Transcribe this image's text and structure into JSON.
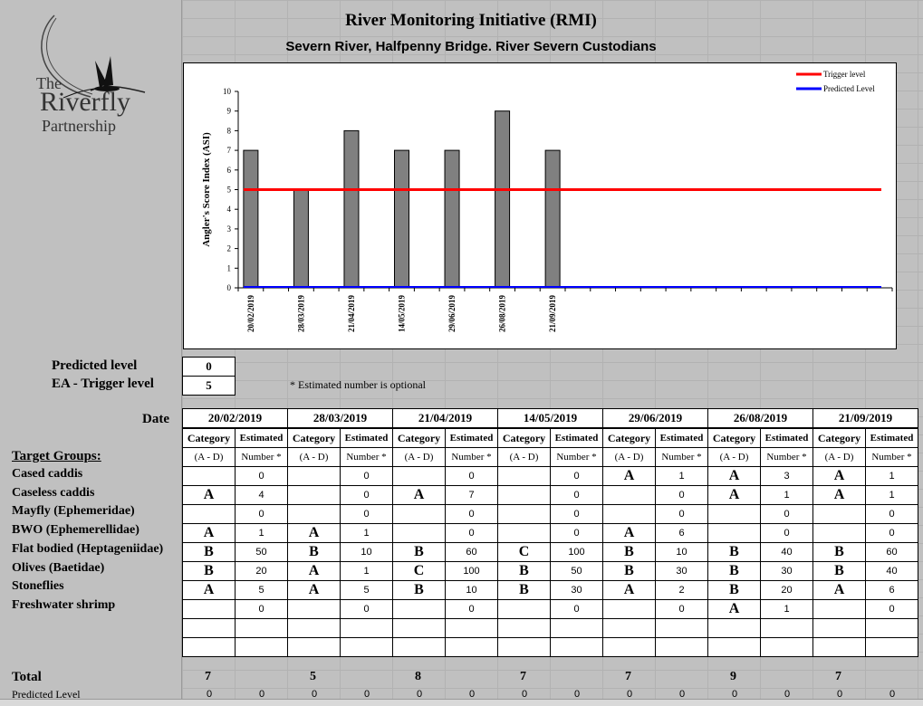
{
  "header": {
    "title": "River Monitoring Initiative (RMI)",
    "subtitle": "Severn River, Halfpenny Bridge.  River Severn Custodians"
  },
  "logo": {
    "line1": "The",
    "line2": "Riverfly",
    "line3": "Partnership"
  },
  "chart_data": {
    "type": "bar",
    "categories": [
      "20/02/2019",
      "28/03/2019",
      "21/04/2019",
      "14/05/2019",
      "29/06/2019",
      "26/08/2019",
      "21/09/2019"
    ],
    "values": [
      7,
      5,
      8,
      7,
      7,
      9,
      7
    ],
    "series": [
      {
        "name": "Trigger level",
        "values": [
          5,
          5,
          5,
          5,
          5,
          5,
          5
        ]
      },
      {
        "name": "Predicted Level",
        "values": [
          0,
          0,
          0,
          0,
          0,
          0,
          0
        ]
      }
    ],
    "ylabel": "Angler's Score Index (ASI)",
    "xlabel": "",
    "ylim": [
      0,
      10
    ],
    "yticks": [
      "0",
      "1",
      "2",
      "3",
      "4",
      "5",
      "6",
      "7",
      "8",
      "9",
      "10"
    ],
    "legend": "top-right",
    "colors": {
      "bars": "#808080",
      "trigger": "#ff0000",
      "predicted": "#0000ff"
    }
  },
  "levels": {
    "predicted_label": "Predicted level",
    "predicted_value": "0",
    "trigger_label": "EA - Trigger level",
    "trigger_value": "5",
    "note": "* Estimated number is optional"
  },
  "table": {
    "date_label": "Date",
    "target_label": "Target Groups:",
    "dates": [
      "20/02/2019",
      "28/03/2019",
      "21/04/2019",
      "14/05/2019",
      "29/06/2019",
      "26/08/2019",
      "21/09/2019"
    ],
    "col_h1": [
      "Category",
      "Estimated"
    ],
    "col_h2": [
      "(A - D)",
      "Number *"
    ],
    "groups": [
      "Cased caddis",
      "Caseless caddis",
      "Mayfly (Ephemeridae)",
      "BWO (Ephemerellidae)",
      "Flat bodied (Heptageniidae)",
      "Olives (Baetidae)",
      "Stoneflies",
      "Freshwater shrimp"
    ],
    "rows": [
      [
        [
          "",
          "0"
        ],
        [
          "",
          "0"
        ],
        [
          "",
          "0"
        ],
        [
          "",
          "0"
        ],
        [
          "A",
          "1"
        ],
        [
          "A",
          "3"
        ],
        [
          "A",
          "1"
        ]
      ],
      [
        [
          "A",
          "4"
        ],
        [
          "",
          "0"
        ],
        [
          "A",
          "7"
        ],
        [
          "",
          "0"
        ],
        [
          "",
          "0"
        ],
        [
          "A",
          "1"
        ],
        [
          "A",
          "1"
        ]
      ],
      [
        [
          "",
          "0"
        ],
        [
          "",
          "0"
        ],
        [
          "",
          "0"
        ],
        [
          "",
          "0"
        ],
        [
          "",
          "0"
        ],
        [
          "",
          "0"
        ],
        [
          "",
          "0"
        ]
      ],
      [
        [
          "A",
          "1"
        ],
        [
          "A",
          "1"
        ],
        [
          "",
          "0"
        ],
        [
          "",
          "0"
        ],
        [
          "A",
          "6"
        ],
        [
          "",
          "0"
        ],
        [
          "",
          "0"
        ]
      ],
      [
        [
          "B",
          "50"
        ],
        [
          "B",
          "10"
        ],
        [
          "B",
          "60"
        ],
        [
          "C",
          "100"
        ],
        [
          "B",
          "10"
        ],
        [
          "B",
          "40"
        ],
        [
          "B",
          "60"
        ]
      ],
      [
        [
          "B",
          "20"
        ],
        [
          "A",
          "1"
        ],
        [
          "C",
          "100"
        ],
        [
          "B",
          "50"
        ],
        [
          "B",
          "30"
        ],
        [
          "B",
          "30"
        ],
        [
          "B",
          "40"
        ]
      ],
      [
        [
          "A",
          "5"
        ],
        [
          "A",
          "5"
        ],
        [
          "B",
          "10"
        ],
        [
          "B",
          "30"
        ],
        [
          "A",
          "2"
        ],
        [
          "B",
          "20"
        ],
        [
          "A",
          "6"
        ]
      ],
      [
        [
          "",
          "0"
        ],
        [
          "",
          "0"
        ],
        [
          "",
          "0"
        ],
        [
          "",
          "0"
        ],
        [
          "",
          "0"
        ],
        [
          "A",
          "1"
        ],
        [
          "",
          "0"
        ]
      ]
    ],
    "total_label": "Total",
    "totals": [
      "7",
      "5",
      "8",
      "7",
      "7",
      "9",
      "7"
    ],
    "predicted_row_label": "Predicted Level",
    "predicted_row": [
      "0",
      "0",
      "0",
      "0",
      "0",
      "0",
      "0",
      "0",
      "0",
      "0",
      "0",
      "0",
      "0",
      "0"
    ]
  }
}
